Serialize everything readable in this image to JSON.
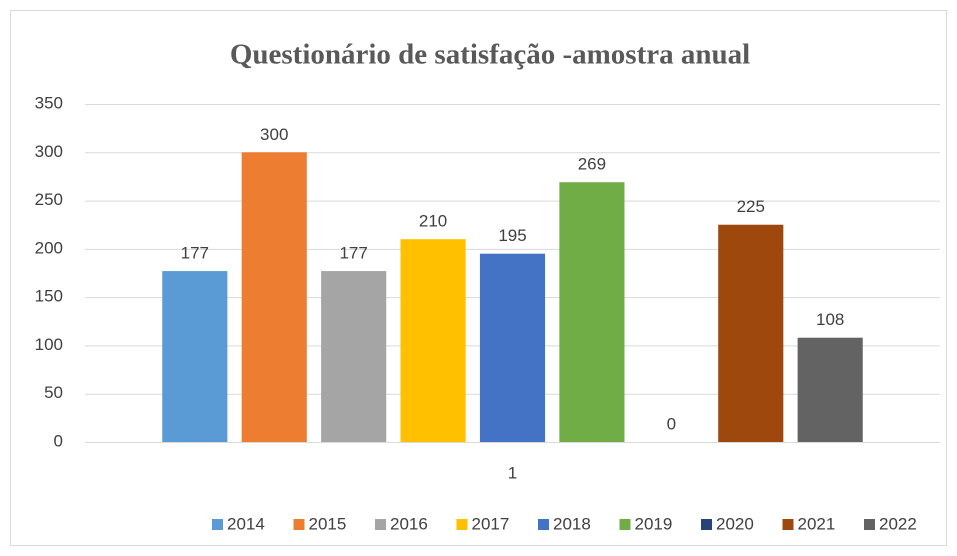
{
  "chart_data": {
    "type": "bar",
    "title": "Questionário de satisfação -amostra anual",
    "categories": [
      "1"
    ],
    "series": [
      {
        "name": "2014",
        "color": "#5b9bd5",
        "values": [
          177
        ]
      },
      {
        "name": "2015",
        "color": "#ed7d31",
        "values": [
          300
        ]
      },
      {
        "name": "2016",
        "color": "#a5a5a5",
        "values": [
          177
        ]
      },
      {
        "name": "2017",
        "color": "#ffc000",
        "values": [
          210
        ]
      },
      {
        "name": "2018",
        "color": "#4472c4",
        "values": [
          195
        ]
      },
      {
        "name": "2019",
        "color": "#70ad47",
        "values": [
          269
        ]
      },
      {
        "name": "2020",
        "color": "#264478",
        "values": [
          0
        ]
      },
      {
        "name": "2021",
        "color": "#9e480e",
        "values": [
          225
        ]
      },
      {
        "name": "2022",
        "color": "#636363",
        "values": [
          108
        ]
      }
    ],
    "ylim": [
      0,
      350
    ],
    "yticks": [
      0,
      50,
      100,
      150,
      200,
      250,
      300,
      350
    ],
    "grid": true,
    "legend": "bottom"
  }
}
